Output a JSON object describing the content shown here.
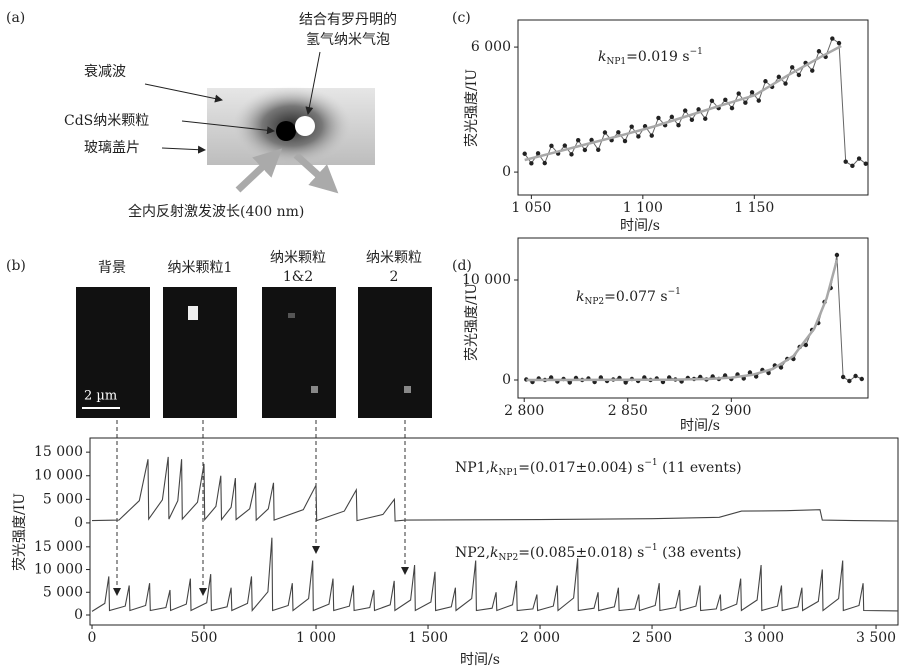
{
  "panel_labels": [
    "(a)",
    "(b)",
    "(c)",
    "(d)"
  ],
  "diagram": {
    "labels": [
      "衰减波",
      "结合有罗丹明的",
      "氢气纳米气泡",
      "CdS纳米颗粒",
      "玻璃盖片",
      "全内反射激发波长(400 nm)"
    ]
  },
  "images": {
    "labels": [
      "背景",
      "纳米颗粒1",
      "纳米颗粒",
      "1&2",
      "纳米颗粒",
      "2"
    ],
    "scale_bar": "2 µm"
  },
  "chart_data": [
    {
      "type": "line",
      "series": [
        {
          "color": "#666",
          "marker_color": "#222",
          "markers": true,
          "x": [
            1047,
            1050,
            1053,
            1056,
            1059,
            1062,
            1065,
            1068,
            1071,
            1074,
            1077,
            1080,
            1083,
            1086,
            1089,
            1092,
            1095,
            1098,
            1101,
            1104,
            1107,
            1110,
            1113,
            1116,
            1119,
            1122,
            1125,
            1128,
            1131,
            1134,
            1137,
            1140,
            1143,
            1146,
            1149,
            1152,
            1155,
            1158,
            1161,
            1164,
            1167,
            1170,
            1173,
            1176,
            1179,
            1182,
            1185,
            1188,
            1191,
            1194,
            1197,
            1200
          ],
          "values": [
            880,
            420,
            900,
            430,
            1260,
            890,
            1270,
            850,
            1530,
            1060,
            1540,
            1070,
            1900,
            1530,
            1910,
            1490,
            2180,
            1710,
            2200,
            1750,
            2600,
            2250,
            2650,
            2250,
            2950,
            2510,
            3010,
            2560,
            3420,
            3070,
            3470,
            3070,
            3770,
            3330,
            3830,
            3430,
            4360,
            4090,
            4570,
            4250,
            5030,
            4660,
            5240,
            4870,
            5800,
            5530,
            6410,
            6190,
            500,
            300,
            650,
            400
          ]
        },
        {
          "color": "#a8a8a8",
          "markers": false,
          "x": [
            1047,
            1060,
            1075,
            1090,
            1105,
            1120,
            1135,
            1150,
            1165,
            1180,
            1189
          ],
          "values": [
            580,
            930,
            1350,
            1750,
            2190,
            2690,
            3200,
            3680,
            4640,
            5540,
            6050
          ]
        }
      ],
      "xlim": [
        1044,
        1201
      ],
      "ylim": [
        -1100,
        7300
      ],
      "xticks": [
        {
          "value": 1050,
          "label": "1 050"
        },
        {
          "value": 1100,
          "label": "1 100"
        },
        {
          "value": 1150,
          "label": "1 150"
        }
      ],
      "yticks": [
        0,
        {
          "value": 6000,
          "label": "6 000"
        }
      ],
      "xlabel": "时间/s",
      "ylabel": "荧光强度/IU",
      "annotation": {
        "k": "k",
        "subscript": "NP1",
        "text": "=0.019 s",
        "superscript": "−1"
      }
    },
    {
      "type": "line",
      "series": [
        {
          "color": "#666",
          "marker_color": "#222",
          "markers": true,
          "x": [
            2801,
            2804,
            2807,
            2810,
            2813,
            2816,
            2819,
            2822,
            2825,
            2828,
            2831,
            2834,
            2837,
            2840,
            2843,
            2846,
            2849,
            2852,
            2855,
            2858,
            2861,
            2864,
            2867,
            2870,
            2873,
            2876,
            2879,
            2882,
            2885,
            2888,
            2891,
            2894,
            2897,
            2900,
            2903,
            2906,
            2909,
            2912,
            2915,
            2918,
            2921,
            2924,
            2927,
            2930,
            2933,
            2936,
            2939,
            2942,
            2945,
            2948,
            2951,
            2954,
            2957,
            2960,
            2963
          ],
          "values": [
            50,
            -200,
            150,
            0,
            250,
            -150,
            100,
            -250,
            200,
            0,
            150,
            -200,
            250,
            -100,
            50,
            200,
            -250,
            100,
            -100,
            250,
            0,
            150,
            -200,
            250,
            50,
            -150,
            200,
            100,
            300,
            50,
            350,
            100,
            450,
            100,
            550,
            150,
            750,
            350,
            1000,
            700,
            1450,
            1250,
            2100,
            2100,
            3300,
            3500,
            5000,
            5700,
            7800,
            9200,
            12500,
            300,
            -100,
            400,
            100
          ]
        },
        {
          "color": "#a8a8a8",
          "markers": false,
          "x": [
            2801,
            2870,
            2890,
            2900,
            2910,
            2920,
            2930,
            2940,
            2946,
            2951
          ],
          "values": [
            0,
            30,
            110,
            235,
            510,
            1100,
            2390,
            5130,
            8170,
            12000
          ]
        }
      ],
      "xlim": [
        2797,
        2966
      ],
      "ylim": [
        -1800,
        14200
      ],
      "xticks": [
        {
          "value": 2800,
          "label": "2 800"
        },
        {
          "value": 2850,
          "label": "2 850"
        },
        {
          "value": 2900,
          "label": "2 900"
        }
      ],
      "yticks": [
        0,
        {
          "value": 10000,
          "label": "10 000"
        }
      ],
      "xlabel": "时间/s",
      "ylabel": "荧光强度/IU",
      "annotation": {
        "k": "k",
        "subscript": "NP2",
        "text": "=0.077 s",
        "superscript": "−1"
      }
    },
    {
      "type": "line",
      "series": [
        {
          "color": "#444",
          "markers": false,
          "x": [
            0,
            120,
            211,
            250,
            253,
            314,
            340,
            343,
            383,
            400,
            403,
            471,
            500,
            503,
            553,
            575,
            578,
            621,
            640,
            643,
            704,
            730,
            733,
            787,
            810,
            813,
            943,
            1000,
            1003,
            1126,
            1180,
            1183,
            1299,
            1350,
            1353,
            1400,
            2000,
            2500,
            2800,
            2900,
            3100,
            3250,
            3260,
            3400,
            3598
          ],
          "values": [
            500,
            600,
            4700,
            13500,
            800,
            4900,
            14000,
            800,
            4700,
            13500,
            800,
            4400,
            12500,
            700,
            3500,
            10000,
            700,
            3300,
            9500,
            700,
            3000,
            8500,
            600,
            3000,
            8500,
            600,
            2800,
            8000,
            500,
            2500,
            7000,
            500,
            1800,
            5000,
            400,
            600,
            700,
            900,
            1200,
            2500,
            2600,
            2800,
            600,
            500,
            400
          ]
        }
      ],
      "xlim": [
        -9,
        3598
      ],
      "ylim": [
        -1500,
        18000
      ],
      "yticks": [
        0,
        {
          "value": 5000,
          "label": "5 000"
        },
        {
          "value": 10000,
          "label": "10 000"
        },
        {
          "value": 15000,
          "label": "15 000"
        }
      ],
      "ylabel": "荧光强度/IU",
      "annotation": {
        "prefix": "NP1,",
        "k": "k",
        "subscript": "NP1",
        "text": "=(0.017±0.004) s",
        "superscript": "−1",
        "suffix": " (11 events)"
      }
    },
    {
      "type": "line",
      "series": [
        {
          "color": "#444",
          "markers": false,
          "x": [
            0,
            57,
            75,
            78,
            148,
            166,
            169,
            239,
            257,
            260,
            330,
            348,
            351,
            421,
            439,
            442,
            512,
            530,
            533,
            603,
            621,
            624,
            694,
            712,
            715,
            785,
            803,
            806,
            876,
            894,
            897,
            967,
            985,
            988,
            1058,
            1076,
            1079,
            1149,
            1167,
            1170,
            1240,
            1258,
            1261,
            1331,
            1349,
            1352,
            1422,
            1440,
            1443,
            1513,
            1531,
            1534,
            1604,
            1622,
            1625,
            1695,
            1713,
            1716,
            1786,
            1804,
            1807,
            1877,
            1895,
            1898,
            1968,
            1986,
            1989,
            2059,
            2077,
            2080,
            2150,
            2168,
            2171,
            2241,
            2259,
            2262,
            2332,
            2350,
            2353,
            2423,
            2441,
            2444,
            2514,
            2532,
            2535,
            2605,
            2623,
            2626,
            2696,
            2714,
            2717,
            2787,
            2805,
            2808,
            2878,
            2896,
            2899,
            2969,
            2987,
            2990,
            3060,
            3078,
            3081,
            3151,
            3169,
            3172,
            3242,
            3260,
            3263,
            3333,
            3351,
            3354,
            3424,
            3442,
            3445,
            3598
          ],
          "values": [
            800,
            2550,
            8500,
            1000,
            1950,
            6500,
            1000,
            2100,
            7000,
            1000,
            1650,
            5500,
            1000,
            2400,
            8000,
            1000,
            2700,
            9000,
            1000,
            1800,
            6000,
            1000,
            2550,
            8500,
            1000,
            5100,
            17000,
            1000,
            2100,
            7000,
            1000,
            3600,
            12000,
            1000,
            2400,
            8000,
            1000,
            1950,
            6500,
            1000,
            1650,
            5500,
            1000,
            2250,
            7500,
            1000,
            3300,
            11000,
            1000,
            2850,
            9500,
            1000,
            1800,
            6000,
            1000,
            3600,
            12000,
            1000,
            1500,
            5000,
            1000,
            2250,
            7500,
            1000,
            1350,
            4500,
            1000,
            1950,
            6500,
            1000,
            3750,
            12500,
            1000,
            1500,
            5000,
            1000,
            1800,
            6000,
            1000,
            1350,
            4500,
            1000,
            2100,
            7000,
            1000,
            1650,
            5500,
            1000,
            1950,
            6500,
            1000,
            1350,
            4500,
            1000,
            2400,
            8000,
            1000,
            3300,
            11000,
            1000,
            1950,
            6500,
            1000,
            1800,
            6000,
            1000,
            3000,
            10000,
            1000,
            3600,
            12000,
            1000,
            2100,
            7000,
            1000,
            900
          ]
        }
      ],
      "xlim": [
        -9,
        3598
      ],
      "ylim": [
        -2200,
        18700
      ],
      "xticks": [
        0,
        500,
        {
          "value": 1000,
          "label": "1 000"
        },
        {
          "value": 1500,
          "label": "1 500"
        },
        {
          "value": 2000,
          "label": "2 000"
        },
        {
          "value": 2500,
          "label": "2 500"
        },
        {
          "value": 3000,
          "label": "3 000"
        },
        {
          "value": 3500,
          "label": "3 500"
        }
      ],
      "yticks": [
        0,
        {
          "value": 5000,
          "label": "5 000"
        },
        {
          "value": 10000,
          "label": "10 000"
        },
        {
          "value": 15000,
          "label": "15 000"
        }
      ],
      "xlabel": "时间/s",
      "annotation": {
        "prefix": "NP2,",
        "k": "k",
        "subscript": "NP2",
        "text": "=(0.085±0.018) s",
        "superscript": "−1",
        "suffix": " (38 events)"
      }
    }
  ]
}
